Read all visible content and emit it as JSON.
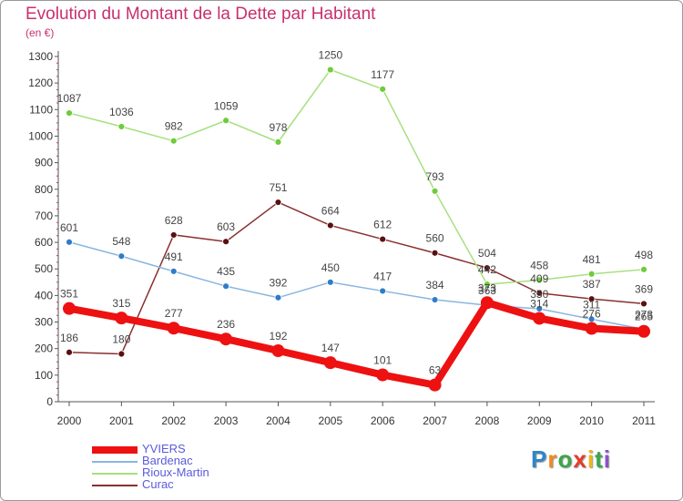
{
  "chart_data": {
    "type": "line",
    "title": "Evolution du Montant de la Dette par Habitant",
    "subtitle": "(en €)",
    "x": [
      "2000",
      "2001",
      "2002",
      "2003",
      "2004",
      "2005",
      "2006",
      "2007",
      "2008",
      "2009",
      "2010",
      "2011"
    ],
    "ylim": [
      0,
      1300
    ],
    "yticks": [
      0,
      100,
      200,
      300,
      400,
      500,
      600,
      700,
      800,
      900,
      1000,
      1100,
      1200,
      1300
    ],
    "grid": false,
    "legend_position": "bottom-left",
    "series": [
      {
        "name": "YVIERS",
        "color": "#ee1111",
        "values": [
          351,
          315,
          277,
          236,
          192,
          147,
          101,
          63,
          373,
          314,
          276,
          265
        ]
      },
      {
        "name": "Bardenac",
        "color": "#4a90d0",
        "values": [
          601,
          548,
          491,
          435,
          392,
          450,
          417,
          384,
          363,
          350,
          311,
          273
        ]
      },
      {
        "name": "Rioux-Martin",
        "color": "#7ed24a",
        "values": [
          1087,
          1036,
          982,
          1059,
          978,
          1250,
          1177,
          793,
          442,
          458,
          481,
          498
        ]
      },
      {
        "name": "Curac",
        "color": "#6b1818",
        "values": [
          186,
          180,
          628,
          603,
          751,
          664,
          612,
          560,
          504,
          409,
          387,
          369
        ]
      }
    ]
  },
  "series_colors": {
    "YVIERS": "#ee1111",
    "Bardenac": "#88b6e0",
    "Rioux-Martin": "#a6e07e",
    "Curac": "#8a3030"
  },
  "marker_colors": {
    "YVIERS": "#ee1111",
    "Bardenac": "#2f7cc8",
    "Rioux-Martin": "#6fcc3a",
    "Curac": "#5a1010"
  },
  "logo": {
    "letters": [
      "P",
      "r",
      "o",
      "x",
      "i",
      "t",
      "i"
    ],
    "colors": [
      "#2f86c8",
      "#f08a1c",
      "#3aa64a",
      "#e83a2a",
      "#f0b41c",
      "#3aa64a",
      "#8a52c8"
    ]
  }
}
